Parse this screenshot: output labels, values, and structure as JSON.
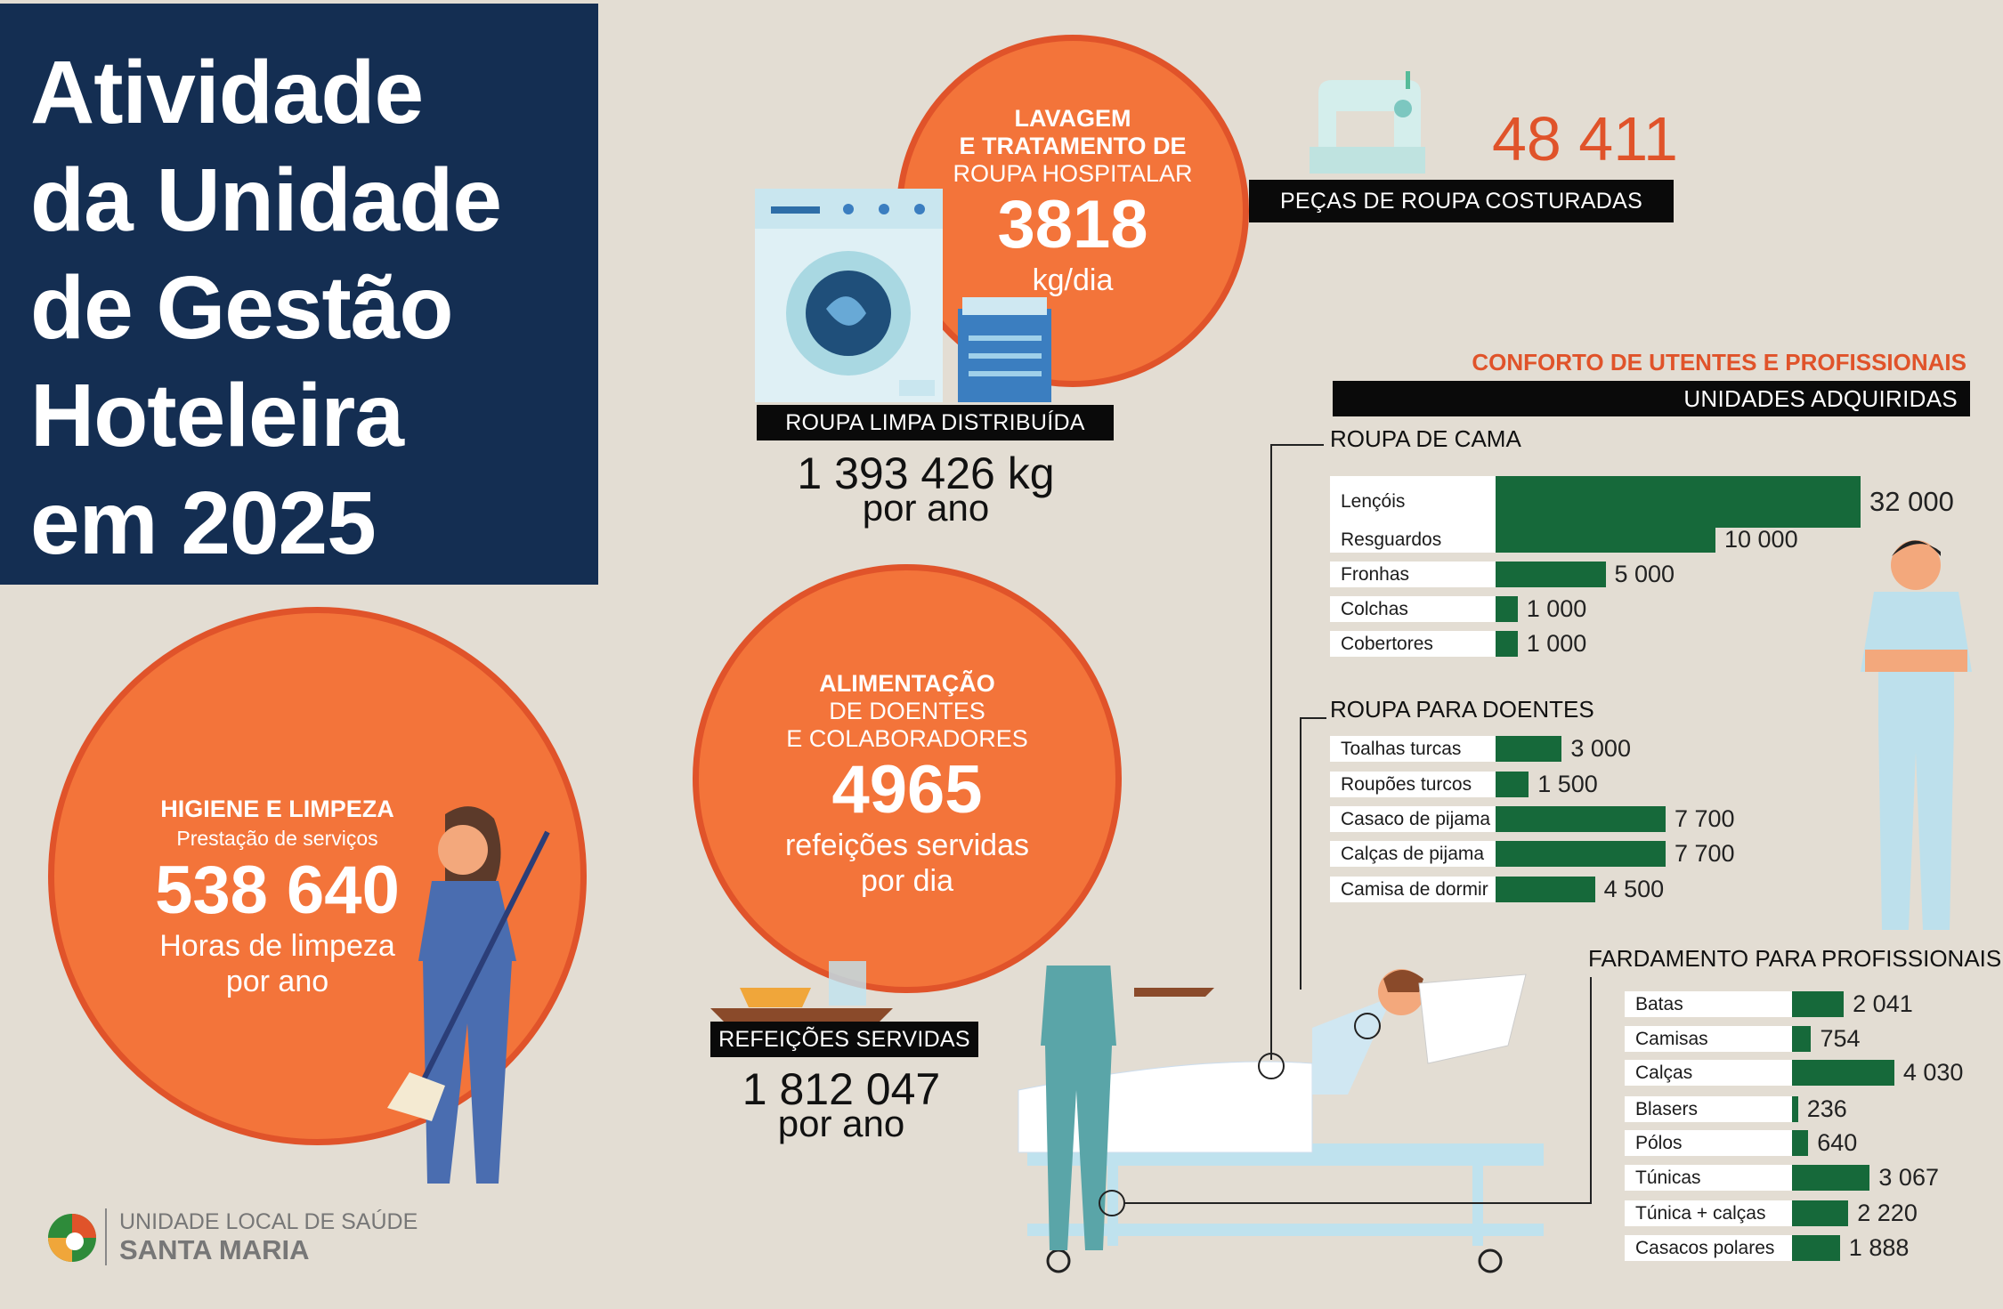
{
  "title": {
    "lines": [
      "Atividade",
      "da Unidade",
      "de Gestão",
      "Hoteleira",
      "em 2025"
    ]
  },
  "colors": {
    "navy": "#142e52",
    "orange": "#f3743a",
    "green": "#16693a",
    "background": "#e3ddd3"
  },
  "laundry": {
    "heading1": "LAVAGEM",
    "heading2": "E TRATAMENTO DE",
    "heading3": "ROUPA HOSPITALAR",
    "value": "3818",
    "unit": "kg/dia",
    "label": "ROUPA LIMPA DISTRIBUÍDA",
    "annual_value": "1 393 426 kg",
    "annual_unit": "por ano"
  },
  "sewing": {
    "value": "48 411",
    "label": "PEÇAS DE ROUPA COSTURADAS"
  },
  "cleaning": {
    "heading": "HIGIENE E LIMPEZA",
    "subheading": "Prestação de serviços",
    "value": "538 640",
    "line1": "Horas de limpeza",
    "line2": "por ano"
  },
  "food": {
    "heading1": "ALIMENTAÇÃO",
    "heading2": "DE DOENTES",
    "heading3": "E COLABORADORES",
    "value": "4965",
    "line1": "refeições servidas",
    "line2": "por dia",
    "label": "REFEIÇÕES SERVIDAS",
    "annual_value": "1 812 047",
    "annual_unit": "por ano"
  },
  "comfort": {
    "title": "CONFORTO DE UTENTES E PROFISSIONAIS",
    "subtitle": "UNIDADES ADQUIRIDAS"
  },
  "chart_data": [
    {
      "type": "bar",
      "title": "ROUPA DE CAMA",
      "categories": [
        "Lençóis",
        "Resguardos",
        "Fronhas",
        "Colchas",
        "Cobertores"
      ],
      "values": [
        32000,
        10000,
        5000,
        1000,
        1000
      ],
      "value_labels": [
        "32 000",
        "10 000",
        "5 000",
        "1 000",
        "1 000"
      ]
    },
    {
      "type": "bar",
      "title": "ROUPA PARA DOENTES",
      "categories": [
        "Toalhas turcas",
        "Roupões turcos",
        "Casaco de pijama",
        "Calças de pijama",
        "Camisa de dormir"
      ],
      "values": [
        3000,
        1500,
        7700,
        7700,
        4500
      ],
      "value_labels": [
        "3 000",
        "1 500",
        "7 700",
        "7 700",
        "4 500"
      ]
    },
    {
      "type": "bar",
      "title": "FARDAMENTO PARA PROFISSIONAIS",
      "categories": [
        "Batas",
        "Camisas",
        "Calças",
        "Blasers",
        "Pólos",
        "Túnicas",
        "Túnica + calças",
        "Casacos polares"
      ],
      "values": [
        2041,
        754,
        4030,
        236,
        640,
        3067,
        2220,
        1888
      ],
      "value_labels": [
        "2 041",
        "754",
        "4 030",
        "236",
        "640",
        "3 067",
        "2 220",
        "1 888"
      ]
    }
  ],
  "logo": {
    "line1": "UNIDADE LOCAL DE SAÚDE",
    "line2": "SANTA MARIA"
  }
}
